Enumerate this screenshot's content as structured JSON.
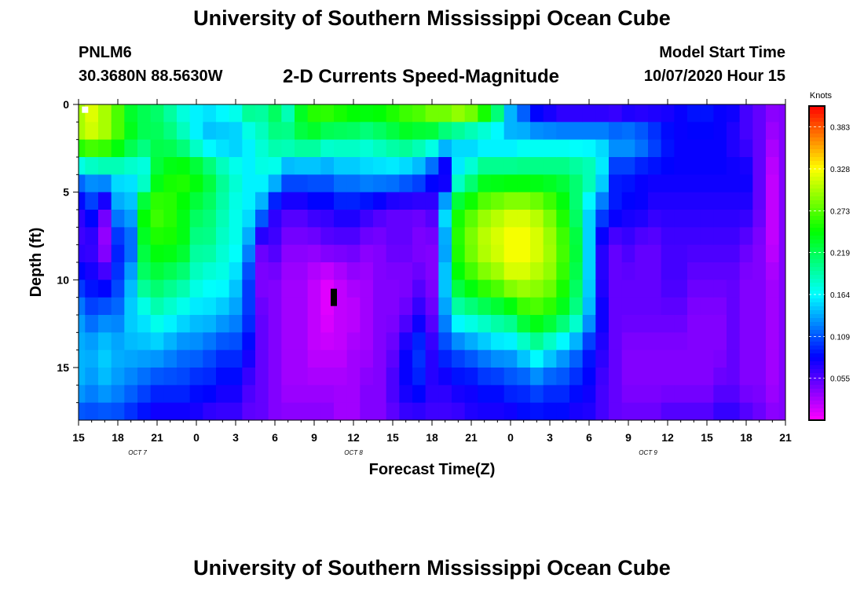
{
  "header": {
    "title": "University of Southern Mississippi Ocean Cube",
    "station": "PNLM6",
    "coordinates": "30.3680N 88.5630W",
    "product": "2-D Currents Speed-Magnitude",
    "model_start_label": "Model Start Time",
    "model_start_value": "10/07/2020 Hour 15"
  },
  "footer": {
    "title": "University of Southern Mississippi Ocean Cube"
  },
  "chart_data": {
    "type": "heatmap",
    "title": "2-D Currents Speed-Magnitude",
    "xlabel": "Forecast Time(Z)",
    "ylabel": "Depth (ft)",
    "x_range_hours": [
      0,
      54
    ],
    "y_range_ft": [
      0,
      18
    ],
    "x_tick_labels": [
      "15",
      "18",
      "21",
      "0",
      "3",
      "6",
      "9",
      "12",
      "15",
      "18",
      "21",
      "0",
      "3",
      "6",
      "9",
      "12",
      "15",
      "18",
      "21"
    ],
    "y_ticks": [
      0,
      5,
      10,
      15
    ],
    "date_labels": [
      {
        "label": "OCT 7",
        "hour": 4.5
      },
      {
        "label": "OCT 8",
        "hour": 21
      },
      {
        "label": "OCT 9",
        "hour": 43.5
      }
    ],
    "colorbar": {
      "title": "Knots",
      "min": 0.0,
      "max": 0.41,
      "ticks": [
        "0.383",
        "0.328",
        "0.273",
        "0.219",
        "0.164",
        "0.109",
        "0.055"
      ]
    },
    "grid": {
      "hours": [
        0,
        1,
        2,
        3,
        4,
        5,
        6,
        7,
        8,
        9,
        10,
        11,
        12,
        13,
        14,
        15,
        16,
        17,
        18,
        19,
        20,
        21,
        22,
        23,
        24,
        25,
        26,
        27,
        28,
        29,
        30,
        31,
        32,
        33,
        34,
        35,
        36,
        37,
        38,
        39,
        40,
        41,
        42,
        43,
        44,
        45,
        46,
        47,
        48,
        49,
        50,
        51,
        52,
        53,
        54
      ],
      "depths_ft": [
        0,
        2,
        4,
        6,
        8,
        10,
        12,
        14,
        16,
        18
      ],
      "speeds_knots": [
        [
          0.3,
          0.32,
          0.3,
          0.27,
          0.23,
          0.22,
          0.21,
          0.19,
          0.17,
          0.16,
          0.16,
          0.17,
          0.18,
          0.21,
          0.2,
          0.22,
          0.18,
          0.24,
          0.27,
          0.28,
          0.27,
          0.26,
          0.26,
          0.26,
          0.27,
          0.28,
          0.29,
          0.31,
          0.32,
          0.34,
          0.33,
          0.29,
          0.23,
          0.14,
          0.1,
          0.06,
          0.05,
          0.04,
          0.04,
          0.04,
          0.04,
          0.04,
          0.05,
          0.05,
          0.06,
          0.07,
          0.08,
          0.09,
          0.09,
          0.08,
          0.08,
          0.06,
          0.05,
          0.04,
          0.04
        ],
        [
          0.3,
          0.31,
          0.3,
          0.27,
          0.24,
          0.22,
          0.22,
          0.21,
          0.19,
          0.16,
          0.14,
          0.14,
          0.14,
          0.16,
          0.18,
          0.2,
          0.21,
          0.22,
          0.22,
          0.2,
          0.2,
          0.2,
          0.19,
          0.2,
          0.21,
          0.22,
          0.21,
          0.2,
          0.17,
          0.15,
          0.14,
          0.14,
          0.14,
          0.14,
          0.15,
          0.15,
          0.15,
          0.15,
          0.15,
          0.15,
          0.15,
          0.14,
          0.14,
          0.13,
          0.11,
          0.09,
          0.08,
          0.08,
          0.08,
          0.08,
          0.07,
          0.06,
          0.05,
          0.03,
          0.04
        ],
        [
          0.13,
          0.14,
          0.15,
          0.16,
          0.16,
          0.16,
          0.23,
          0.25,
          0.26,
          0.25,
          0.23,
          0.2,
          0.18,
          0.16,
          0.17,
          0.16,
          0.12,
          0.12,
          0.12,
          0.12,
          0.13,
          0.13,
          0.14,
          0.14,
          0.14,
          0.13,
          0.12,
          0.09,
          0.05,
          0.16,
          0.19,
          0.22,
          0.22,
          0.22,
          0.22,
          0.22,
          0.22,
          0.22,
          0.21,
          0.2,
          0.16,
          0.09,
          0.09,
          0.08,
          0.08,
          0.08,
          0.08,
          0.08,
          0.08,
          0.08,
          0.08,
          0.08,
          0.05,
          0.02,
          0.04
        ],
        [
          0.07,
          0.09,
          0.05,
          0.13,
          0.14,
          0.25,
          0.27,
          0.26,
          0.24,
          0.22,
          0.21,
          0.19,
          0.17,
          0.16,
          0.13,
          0.07,
          0.06,
          0.06,
          0.07,
          0.07,
          0.08,
          0.08,
          0.07,
          0.06,
          0.05,
          0.05,
          0.05,
          0.06,
          0.16,
          0.25,
          0.27,
          0.29,
          0.3,
          0.31,
          0.31,
          0.3,
          0.28,
          0.25,
          0.21,
          0.15,
          0.11,
          0.09,
          0.08,
          0.08,
          0.07,
          0.07,
          0.07,
          0.07,
          0.07,
          0.07,
          0.07,
          0.07,
          0.05,
          0.02,
          0.04
        ],
        [
          0.06,
          0.06,
          0.03,
          0.09,
          0.11,
          0.23,
          0.25,
          0.25,
          0.24,
          0.2,
          0.2,
          0.18,
          0.17,
          0.13,
          0.05,
          0.06,
          0.04,
          0.04,
          0.04,
          0.05,
          0.05,
          0.05,
          0.04,
          0.04,
          0.05,
          0.05,
          0.04,
          0.04,
          0.13,
          0.26,
          0.29,
          0.31,
          0.32,
          0.33,
          0.33,
          0.32,
          0.3,
          0.27,
          0.23,
          0.15,
          0.07,
          0.05,
          0.06,
          0.05,
          0.05,
          0.06,
          0.06,
          0.06,
          0.06,
          0.06,
          0.06,
          0.05,
          0.04,
          0.02,
          0.04
        ],
        [
          0.09,
          0.08,
          0.07,
          0.1,
          0.14,
          0.21,
          0.22,
          0.21,
          0.2,
          0.18,
          0.17,
          0.17,
          0.15,
          0.1,
          0.04,
          0.04,
          0.03,
          0.03,
          0.02,
          0.01,
          0.02,
          0.03,
          0.03,
          0.04,
          0.04,
          0.04,
          0.05,
          0.04,
          0.15,
          0.24,
          0.26,
          0.28,
          0.29,
          0.31,
          0.31,
          0.3,
          0.29,
          0.26,
          0.22,
          0.15,
          0.07,
          0.05,
          0.05,
          0.05,
          0.05,
          0.06,
          0.06,
          0.05,
          0.05,
          0.05,
          0.05,
          0.04,
          0.04,
          0.03,
          0.04
        ],
        [
          0.13,
          0.11,
          0.12,
          0.12,
          0.15,
          0.16,
          0.18,
          0.17,
          0.16,
          0.15,
          0.15,
          0.14,
          0.13,
          0.1,
          0.05,
          0.04,
          0.03,
          0.03,
          0.02,
          0.01,
          0.02,
          0.02,
          0.03,
          0.04,
          0.04,
          0.05,
          0.07,
          0.05,
          0.13,
          0.18,
          0.19,
          0.2,
          0.21,
          0.22,
          0.25,
          0.26,
          0.25,
          0.23,
          0.2,
          0.14,
          0.08,
          0.05,
          0.05,
          0.05,
          0.05,
          0.05,
          0.05,
          0.04,
          0.04,
          0.04,
          0.05,
          0.04,
          0.04,
          0.03,
          0.04
        ],
        [
          0.14,
          0.14,
          0.15,
          0.14,
          0.14,
          0.14,
          0.14,
          0.13,
          0.12,
          0.12,
          0.11,
          0.1,
          0.1,
          0.08,
          0.05,
          0.04,
          0.03,
          0.03,
          0.02,
          0.02,
          0.02,
          0.03,
          0.03,
          0.04,
          0.05,
          0.08,
          0.1,
          0.07,
          0.1,
          0.11,
          0.12,
          0.13,
          0.14,
          0.14,
          0.16,
          0.18,
          0.16,
          0.14,
          0.12,
          0.09,
          0.07,
          0.05,
          0.04,
          0.04,
          0.04,
          0.04,
          0.04,
          0.04,
          0.04,
          0.04,
          0.05,
          0.04,
          0.04,
          0.03,
          0.04
        ],
        [
          0.14,
          0.13,
          0.14,
          0.13,
          0.12,
          0.11,
          0.1,
          0.1,
          0.1,
          0.09,
          0.09,
          0.08,
          0.08,
          0.06,
          0.05,
          0.04,
          0.03,
          0.03,
          0.03,
          0.03,
          0.03,
          0.03,
          0.04,
          0.04,
          0.06,
          0.08,
          0.09,
          0.07,
          0.07,
          0.08,
          0.08,
          0.09,
          0.09,
          0.1,
          0.1,
          0.11,
          0.1,
          0.1,
          0.09,
          0.08,
          0.06,
          0.05,
          0.04,
          0.04,
          0.04,
          0.04,
          0.04,
          0.04,
          0.04,
          0.05,
          0.05,
          0.04,
          0.04,
          0.03,
          0.04
        ],
        [
          0.1,
          0.1,
          0.1,
          0.1,
          0.09,
          0.08,
          0.07,
          0.07,
          0.07,
          0.07,
          0.06,
          0.06,
          0.06,
          0.05,
          0.05,
          0.04,
          0.04,
          0.04,
          0.04,
          0.04,
          0.03,
          0.03,
          0.04,
          0.04,
          0.05,
          0.06,
          0.06,
          0.06,
          0.06,
          0.06,
          0.07,
          0.07,
          0.07,
          0.07,
          0.08,
          0.08,
          0.08,
          0.08,
          0.07,
          0.07,
          0.06,
          0.05,
          0.05,
          0.05,
          0.05,
          0.06,
          0.06,
          0.06,
          0.06,
          0.07,
          0.07,
          0.06,
          0.05,
          0.04,
          0.04
        ]
      ]
    },
    "markers": [
      {
        "shape": "white-square",
        "hour": 0.5,
        "depth_ft": 0.3
      },
      {
        "shape": "black-bar",
        "hour": 19.5,
        "depth_ft": 11
      }
    ]
  }
}
